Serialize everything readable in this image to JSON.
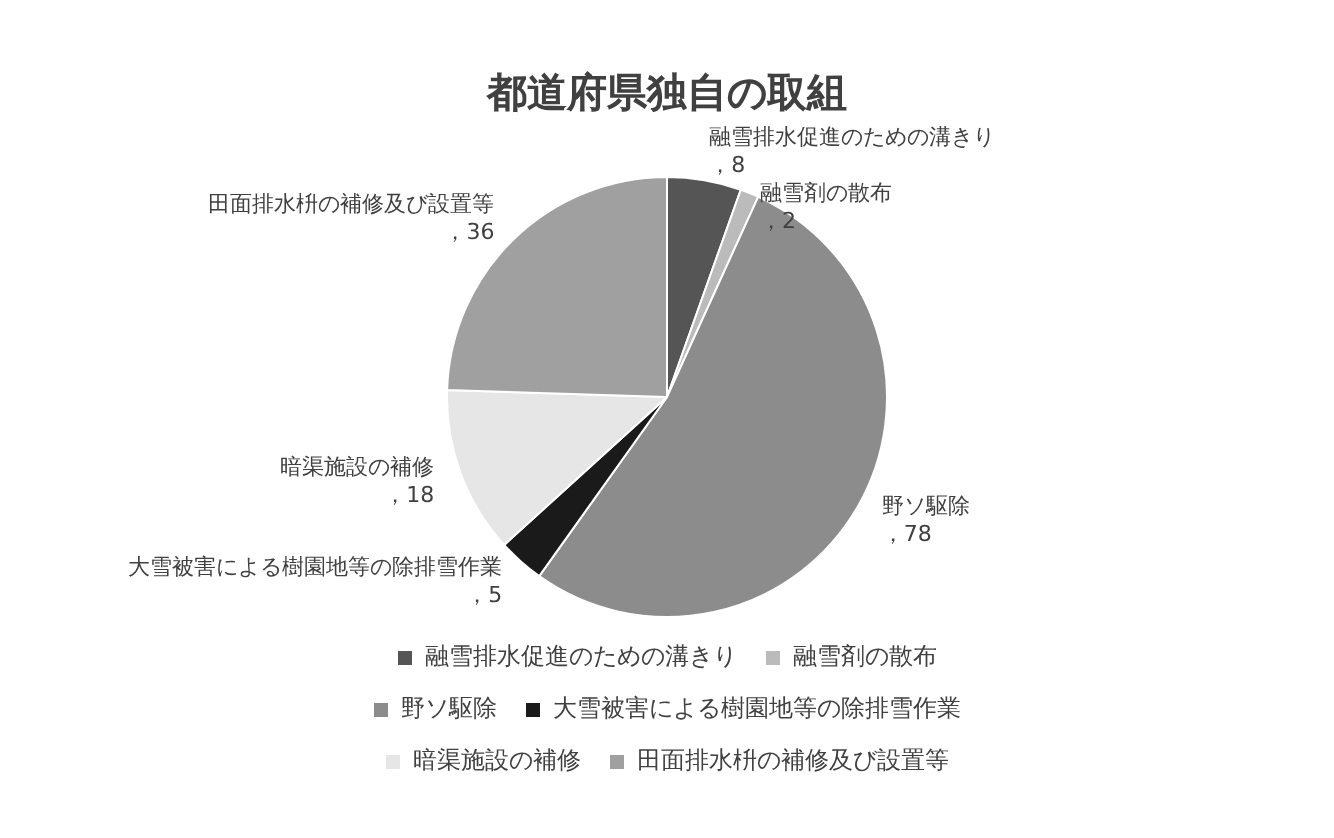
{
  "chart_data": {
    "type": "pie",
    "title": "都道府県独自の取組",
    "categories": [
      "融雪排水促進のための溝きり",
      "融雪剤の散布",
      "野ソ駆除",
      "大雪被害による樹園地等の除排雪作業",
      "暗渠施設の補修",
      "田面排水枡の補修及び設置等"
    ],
    "values": [
      8,
      2,
      78,
      5,
      18,
      36
    ],
    "colors": [
      "#555555",
      "#bbbbbb",
      "#8c8c8c",
      "#1a1a1a",
      "#e6e6e6",
      "#a0a0a0"
    ],
    "value_labels": [
      "，8",
      "，2",
      "，78",
      "，5",
      "，18",
      "，36"
    ],
    "legend": "bottom"
  }
}
